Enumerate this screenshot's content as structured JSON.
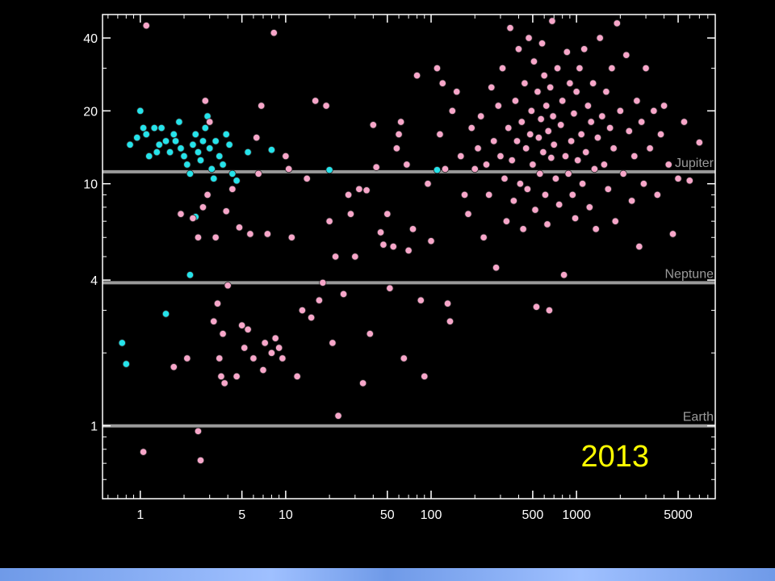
{
  "chart_data": {
    "type": "scatter",
    "title": "",
    "xlabel": "",
    "ylabel": "",
    "x_scale": "log",
    "y_scale": "log",
    "xlim": [
      0.55,
      9000
    ],
    "ylim": [
      0.5,
      50
    ],
    "x_ticks": [
      {
        "value": 1,
        "label": "1"
      },
      {
        "value": 5,
        "label": "5"
      },
      {
        "value": 10,
        "label": "10"
      },
      {
        "value": 50,
        "label": "50"
      },
      {
        "value": 100,
        "label": "100"
      },
      {
        "value": 500,
        "label": "500"
      },
      {
        "value": 1000,
        "label": "1000"
      },
      {
        "value": 5000,
        "label": "5000"
      }
    ],
    "y_ticks": [
      {
        "value": 1,
        "label": "1"
      },
      {
        "value": 4,
        "label": "4"
      },
      {
        "value": 10,
        "label": "10"
      },
      {
        "value": 20,
        "label": "20"
      },
      {
        "value": 40,
        "label": "40"
      }
    ],
    "reference_lines": [
      {
        "label": "Jupiter",
        "y": 11.2
      },
      {
        "label": "Neptune",
        "y": 3.9
      },
      {
        "label": "Earth",
        "y": 1.0
      }
    ],
    "annotation": "2013",
    "colors": {
      "series_a": "#25e3ea",
      "series_b": "#f7a6c9",
      "reference_line": "#9a9a9a",
      "annotation": "#ffff00",
      "axis": "#ffffff",
      "background": "#000000"
    },
    "series": [
      {
        "color_key": "series_a",
        "points": [
          [
            0.75,
            2.2
          ],
          [
            0.8,
            1.8
          ],
          [
            0.85,
            14.5
          ],
          [
            0.95,
            15.5
          ],
          [
            1.0,
            20
          ],
          [
            1.05,
            17
          ],
          [
            1.1,
            16
          ],
          [
            1.15,
            13
          ],
          [
            1.25,
            17
          ],
          [
            1.3,
            13.5
          ],
          [
            1.35,
            14.5
          ],
          [
            1.4,
            17
          ],
          [
            1.5,
            15
          ],
          [
            1.6,
            13.5
          ],
          [
            1.7,
            16
          ],
          [
            1.75,
            15
          ],
          [
            1.85,
            18
          ],
          [
            1.9,
            14
          ],
          [
            2.0,
            13
          ],
          [
            2.1,
            12
          ],
          [
            2.2,
            11
          ],
          [
            2.3,
            14.5
          ],
          [
            2.4,
            16
          ],
          [
            2.5,
            13.5
          ],
          [
            2.6,
            12.5
          ],
          [
            2.7,
            15
          ],
          [
            2.8,
            17
          ],
          [
            2.9,
            19
          ],
          [
            3.0,
            14
          ],
          [
            3.1,
            11.5
          ],
          [
            3.2,
            10.5
          ],
          [
            3.3,
            15
          ],
          [
            3.5,
            13
          ],
          [
            3.7,
            12
          ],
          [
            3.9,
            16
          ],
          [
            4.1,
            14.5
          ],
          [
            4.3,
            11
          ],
          [
            2.4,
            7.3
          ],
          [
            2.2,
            4.2
          ],
          [
            1.5,
            2.9
          ],
          [
            4.6,
            10.3
          ],
          [
            5.5,
            13.5
          ],
          [
            8.0,
            13.8
          ],
          [
            20,
            11.4
          ],
          [
            110,
            11.4
          ]
        ]
      },
      {
        "color_key": "series_b",
        "points": [
          [
            1.1,
            45
          ],
          [
            1.05,
            0.78
          ],
          [
            1.7,
            1.75
          ],
          [
            1.9,
            7.5
          ],
          [
            2.1,
            1.9
          ],
          [
            2.3,
            7.2
          ],
          [
            2.5,
            6.0
          ],
          [
            2.5,
            0.95
          ],
          [
            2.6,
            0.72
          ],
          [
            2.7,
            8.0
          ],
          [
            2.8,
            22
          ],
          [
            2.9,
            9.0
          ],
          [
            3.0,
            18
          ],
          [
            3.2,
            2.7
          ],
          [
            3.3,
            6.0
          ],
          [
            3.4,
            3.2
          ],
          [
            3.5,
            1.9
          ],
          [
            3.6,
            1.6
          ],
          [
            3.7,
            2.4
          ],
          [
            3.8,
            1.5
          ],
          [
            3.9,
            7.7
          ],
          [
            4.0,
            3.8
          ],
          [
            4.3,
            9.5
          ],
          [
            4.6,
            1.6
          ],
          [
            4.8,
            6.6
          ],
          [
            5.0,
            2.6
          ],
          [
            5.2,
            2.1
          ],
          [
            5.5,
            2.5
          ],
          [
            5.7,
            6.2
          ],
          [
            6.0,
            1.9
          ],
          [
            6.3,
            15.5
          ],
          [
            6.5,
            11.0
          ],
          [
            6.8,
            21
          ],
          [
            7.0,
            1.7
          ],
          [
            7.2,
            2.2
          ],
          [
            7.5,
            6.2
          ],
          [
            8.0,
            2.0
          ],
          [
            8.3,
            42
          ],
          [
            8.5,
            2.3
          ],
          [
            9.0,
            2.1
          ],
          [
            9.5,
            1.9
          ],
          [
            10.0,
            13.0
          ],
          [
            10.5,
            11.5
          ],
          [
            11.0,
            6.0
          ],
          [
            12.0,
            1.6
          ],
          [
            13.0,
            3.0
          ],
          [
            14.0,
            10.5
          ],
          [
            15.0,
            2.8
          ],
          [
            16.0,
            22
          ],
          [
            17.0,
            3.3
          ],
          [
            18.0,
            3.9
          ],
          [
            19.0,
            21
          ],
          [
            20.0,
            7.0
          ],
          [
            21.0,
            2.2
          ],
          [
            22.0,
            5.0
          ],
          [
            23.0,
            1.1
          ],
          [
            25.0,
            3.5
          ],
          [
            27.0,
            9.0
          ],
          [
            28.0,
            7.5
          ],
          [
            30.0,
            5.0
          ],
          [
            32.0,
            9.5
          ],
          [
            34.0,
            1.5
          ],
          [
            36.0,
            9.4
          ],
          [
            38.0,
            2.4
          ],
          [
            40.0,
            17.5
          ],
          [
            42.0,
            11.7
          ],
          [
            45.0,
            6.3
          ],
          [
            47.0,
            5.6
          ],
          [
            50.0,
            7.5
          ],
          [
            52.0,
            3.7
          ],
          [
            55.0,
            5.5
          ],
          [
            58.0,
            14.0
          ],
          [
            60.0,
            16.0
          ],
          [
            62.0,
            18.0
          ],
          [
            65.0,
            1.9
          ],
          [
            68.0,
            12.0
          ],
          [
            70.0,
            5.3
          ],
          [
            75.0,
            6.5
          ],
          [
            80.0,
            28
          ],
          [
            85.0,
            3.3
          ],
          [
            90.0,
            1.6
          ],
          [
            95.0,
            10.0
          ],
          [
            100.0,
            5.8
          ],
          [
            110.0,
            30
          ],
          [
            115.0,
            16.0
          ],
          [
            120.0,
            26
          ],
          [
            125.0,
            11.5
          ],
          [
            130.0,
            3.2
          ],
          [
            135.0,
            2.7
          ],
          [
            140.0,
            20
          ],
          [
            150.0,
            24
          ],
          [
            160.0,
            13.0
          ],
          [
            170.0,
            9.0
          ],
          [
            180.0,
            7.5
          ],
          [
            190.0,
            17.0
          ],
          [
            200.0,
            11.5
          ],
          [
            210.0,
            14.0
          ],
          [
            220.0,
            19.0
          ],
          [
            230.0,
            6.0
          ],
          [
            240.0,
            12.0
          ],
          [
            250.0,
            9.0
          ],
          [
            260.0,
            25
          ],
          [
            270.0,
            15.0
          ],
          [
            280.0,
            4.5
          ],
          [
            290.0,
            21
          ],
          [
            300.0,
            13.0
          ],
          [
            310.0,
            30
          ],
          [
            320.0,
            10.5
          ],
          [
            330.0,
            7.0
          ],
          [
            340.0,
            17.0
          ],
          [
            350.0,
            44
          ],
          [
            360.0,
            12.5
          ],
          [
            370.0,
            8.5
          ],
          [
            380.0,
            22
          ],
          [
            390.0,
            15.0
          ],
          [
            400.0,
            36
          ],
          [
            410.0,
            10.0
          ],
          [
            420.0,
            18.0
          ],
          [
            430.0,
            6.5
          ],
          [
            440.0,
            26
          ],
          [
            450.0,
            14.0
          ],
          [
            460.0,
            9.5
          ],
          [
            470.0,
            40
          ],
          [
            480.0,
            16.0
          ],
          [
            490.0,
            20
          ],
          [
            500.0,
            12.0
          ],
          [
            510.0,
            32
          ],
          [
            520.0,
            7.8
          ],
          [
            530.0,
            3.1
          ],
          [
            540.0,
            24
          ],
          [
            550.0,
            15.5
          ],
          [
            560.0,
            11.0
          ],
          [
            570.0,
            18.5
          ],
          [
            580.0,
            38
          ],
          [
            590.0,
            13.5
          ],
          [
            600.0,
            28
          ],
          [
            610.0,
            9.0
          ],
          [
            620.0,
            21
          ],
          [
            630.0,
            6.8
          ],
          [
            640.0,
            16.5
          ],
          [
            650.0,
            3.0
          ],
          [
            660.0,
            25
          ],
          [
            670.0,
            12.8
          ],
          [
            680.0,
            47
          ],
          [
            690.0,
            19.0
          ],
          [
            700.0,
            14.5
          ],
          [
            720.0,
            10.5
          ],
          [
            740.0,
            30
          ],
          [
            760.0,
            8.2
          ],
          [
            780.0,
            17.5
          ],
          [
            800.0,
            22
          ],
          [
            820.0,
            4.2
          ],
          [
            840.0,
            13.0
          ],
          [
            860.0,
            35
          ],
          [
            880.0,
            11.0
          ],
          [
            900.0,
            26
          ],
          [
            920.0,
            15.0
          ],
          [
            940.0,
            9.0
          ],
          [
            960.0,
            19.5
          ],
          [
            980.0,
            7.2
          ],
          [
            1000.0,
            24
          ],
          [
            1020.0,
            12.5
          ],
          [
            1050.0,
            30
          ],
          [
            1080.0,
            16.0
          ],
          [
            1100.0,
            10.0
          ],
          [
            1130.0,
            36
          ],
          [
            1160.0,
            13.5
          ],
          [
            1200.0,
            21
          ],
          [
            1230.0,
            8.0
          ],
          [
            1260.0,
            18.0
          ],
          [
            1300.0,
            26
          ],
          [
            1330.0,
            11.5
          ],
          [
            1360.0,
            6.5
          ],
          [
            1400.0,
            15.5
          ],
          [
            1450.0,
            40
          ],
          [
            1500.0,
            19.0
          ],
          [
            1550.0,
            12.0
          ],
          [
            1600.0,
            24
          ],
          [
            1650.0,
            9.5
          ],
          [
            1700.0,
            17.0
          ],
          [
            1750.0,
            30
          ],
          [
            1800.0,
            14.0
          ],
          [
            1850.0,
            7.0
          ],
          [
            1900.0,
            46
          ],
          [
            2000.0,
            20
          ],
          [
            2100.0,
            11.0
          ],
          [
            2200.0,
            34
          ],
          [
            2300.0,
            16.5
          ],
          [
            2400.0,
            8.5
          ],
          [
            2500.0,
            13.0
          ],
          [
            2600.0,
            22
          ],
          [
            2700.0,
            5.5
          ],
          [
            2800.0,
            18.0
          ],
          [
            2900.0,
            10.0
          ],
          [
            3000.0,
            30
          ],
          [
            3200.0,
            14.0
          ],
          [
            3400.0,
            20
          ],
          [
            3600.0,
            9.0
          ],
          [
            3800.0,
            16.0
          ],
          [
            4000.0,
            21
          ],
          [
            4300.0,
            12.0
          ],
          [
            4600.0,
            6.2
          ],
          [
            5000.0,
            10.5
          ],
          [
            5500.0,
            18.0
          ],
          [
            6000.0,
            10.3
          ],
          [
            7000.0,
            14.8
          ]
        ]
      }
    ]
  }
}
